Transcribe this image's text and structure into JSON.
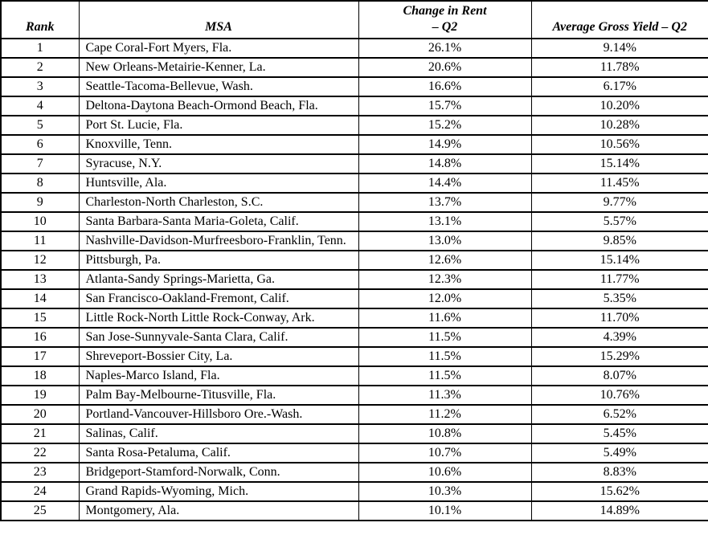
{
  "table": {
    "headers": [
      {
        "key": "rank",
        "label": "Rank"
      },
      {
        "key": "msa",
        "label": "MSA"
      },
      {
        "key": "change",
        "label": "Change in Rent\n– Q2"
      },
      {
        "key": "yield",
        "label": "Average Gross Yield – Q2"
      }
    ],
    "rows": [
      {
        "rank": "1",
        "msa": "Cape Coral-Fort Myers, Fla.",
        "change": "26.1%",
        "yield": "9.14%"
      },
      {
        "rank": "2",
        "msa": "New Orleans-Metairie-Kenner, La.",
        "change": "20.6%",
        "yield": "11.78%"
      },
      {
        "rank": "3",
        "msa": "Seattle-Tacoma-Bellevue, Wash.",
        "change": "16.6%",
        "yield": "6.17%"
      },
      {
        "rank": "4",
        "msa": "Deltona-Daytona Beach-Ormond Beach, Fla.",
        "change": "15.7%",
        "yield": "10.20%"
      },
      {
        "rank": "5",
        "msa": "Port St. Lucie, Fla.",
        "change": "15.2%",
        "yield": "10.28%"
      },
      {
        "rank": "6",
        "msa": "Knoxville, Tenn.",
        "change": "14.9%",
        "yield": "10.56%"
      },
      {
        "rank": "7",
        "msa": "Syracuse, N.Y.",
        "change": "14.8%",
        "yield": "15.14%"
      },
      {
        "rank": "8",
        "msa": "Huntsville, Ala.",
        "change": "14.4%",
        "yield": "11.45%"
      },
      {
        "rank": "9",
        "msa": "Charleston-North Charleston, S.C.",
        "change": "13.7%",
        "yield": "9.77%"
      },
      {
        "rank": "10",
        "msa": "Santa Barbara-Santa Maria-Goleta, Calif.",
        "change": "13.1%",
        "yield": "5.57%"
      },
      {
        "rank": "11",
        "msa": "Nashville-Davidson-Murfreesboro-Franklin, Tenn.",
        "change": "13.0%",
        "yield": "9.85%"
      },
      {
        "rank": "12",
        "msa": "Pittsburgh, Pa.",
        "change": "12.6%",
        "yield": "15.14%"
      },
      {
        "rank": "13",
        "msa": "Atlanta-Sandy Springs-Marietta, Ga.",
        "change": "12.3%",
        "yield": "11.77%"
      },
      {
        "rank": "14",
        "msa": "San Francisco-Oakland-Fremont, Calif.",
        "change": "12.0%",
        "yield": "5.35%"
      },
      {
        "rank": "15",
        "msa": "Little Rock-North Little Rock-Conway, Ark.",
        "change": "11.6%",
        "yield": "11.70%"
      },
      {
        "rank": "16",
        "msa": "San Jose-Sunnyvale-Santa Clara, Calif.",
        "change": "11.5%",
        "yield": "4.39%"
      },
      {
        "rank": "17",
        "msa": "Shreveport-Bossier City, La.",
        "change": "11.5%",
        "yield": "15.29%"
      },
      {
        "rank": "18",
        "msa": "Naples-Marco Island, Fla.",
        "change": "11.5%",
        "yield": "8.07%"
      },
      {
        "rank": "19",
        "msa": "Palm Bay-Melbourne-Titusville, Fla.",
        "change": "11.3%",
        "yield": "10.76%"
      },
      {
        "rank": "20",
        "msa": "Portland-Vancouver-Hillsboro Ore.-Wash.",
        "change": "11.2%",
        "yield": "6.52%"
      },
      {
        "rank": "21",
        "msa": "Salinas, Calif.",
        "change": "10.8%",
        "yield": "5.45%"
      },
      {
        "rank": "22",
        "msa": "Santa Rosa-Petaluma, Calif.",
        "change": "10.7%",
        "yield": "5.49%"
      },
      {
        "rank": "23",
        "msa": "Bridgeport-Stamford-Norwalk, Conn.",
        "change": "10.6%",
        "yield": "8.83%"
      },
      {
        "rank": "24",
        "msa": "Grand Rapids-Wyoming, Mich.",
        "change": "10.3%",
        "yield": "15.62%"
      },
      {
        "rank": "25",
        "msa": "Montgomery, Ala.",
        "change": "10.1%",
        "yield": "14.89%"
      }
    ]
  },
  "colors": {
    "text": "#000000",
    "border": "#000000",
    "background": "#ffffff"
  }
}
